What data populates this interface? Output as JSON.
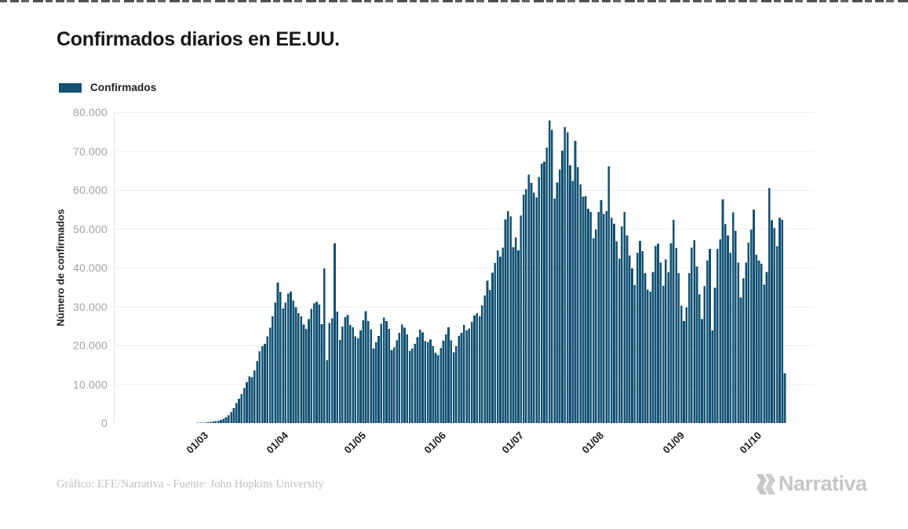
{
  "chart": {
    "title": "Confirmados diarios en EE.UU."
  },
  "footer": {
    "source": "Gráfico: EFE/Narrativa - Fuente: John Hopkins University",
    "logo_text": "Narrativa"
  },
  "chart_data": {
    "type": "bar",
    "title": "Confirmados diarios en EE.UU.",
    "series_name": "Confirmados",
    "ylabel": "Número de confirmados",
    "ylim": [
      0,
      80000
    ],
    "grid": true,
    "legend_position": "top-left",
    "bar_color": "#135273",
    "grid_color": "#ececec",
    "yticks": [
      "80.000",
      "70.000",
      "60.000",
      "50.000",
      "40.000",
      "30.000",
      "20.000",
      "10.000",
      "0"
    ],
    "xticks": [
      {
        "label": "01/03",
        "day_index": 29
      },
      {
        "label": "01/04",
        "day_index": 60
      },
      {
        "label": "01/05",
        "day_index": 90
      },
      {
        "label": "01/06",
        "day_index": 121
      },
      {
        "label": "01/07",
        "day_index": 151
      },
      {
        "label": "01/08",
        "day_index": 182
      },
      {
        "label": "01/09",
        "day_index": 213
      },
      {
        "label": "01/10",
        "day_index": 243
      }
    ],
    "values": [
      0,
      0,
      0,
      0,
      0,
      0,
      0,
      0,
      0,
      0,
      0,
      0,
      0,
      0,
      0,
      0,
      0,
      0,
      2,
      3,
      2,
      4,
      5,
      6,
      8,
      10,
      12,
      15,
      19,
      25,
      30,
      45,
      70,
      90,
      120,
      150,
      220,
      300,
      400,
      500,
      650,
      850,
      1100,
      1500,
      2000,
      2800,
      3800,
      5200,
      6300,
      7500,
      9000,
      10500,
      12000,
      11800,
      13500,
      16000,
      18500,
      19800,
      20400,
      22300,
      24500,
      27500,
      31000,
      36200,
      33700,
      29500,
      31000,
      33300,
      33800,
      31500,
      29800,
      28300,
      27500,
      25400,
      24200,
      26800,
      29400,
      30800,
      31200,
      30500,
      25500,
      39800,
      16200,
      25800,
      27000,
      46300,
      28700,
      21400,
      24800,
      27300,
      27800,
      25300,
      24600,
      22300,
      21800,
      23800,
      26500,
      28800,
      26300,
      24100,
      19200,
      20800,
      22400,
      25600,
      27200,
      26300,
      24200,
      18800,
      19500,
      21300,
      23200,
      25400,
      24500,
      22800,
      18600,
      19200,
      20400,
      22100,
      24000,
      23300,
      21100,
      20800,
      21500,
      19800,
      18100,
      17500,
      19300,
      21200,
      22800,
      24600,
      21300,
      18200,
      19800,
      22400,
      23200,
      25300,
      23800,
      24300,
      26100,
      27700,
      28300,
      27500,
      30300,
      32800,
      36700,
      34200,
      38700,
      41200,
      44400,
      42800,
      45200,
      52400,
      54500,
      53200,
      45300,
      47800,
      44400,
      53400,
      58800,
      60200,
      63900,
      61800,
      59300,
      58100,
      63300,
      66800,
      67300,
      70900,
      77900,
      75500,
      57800,
      61900,
      65300,
      70100,
      76200,
      74800,
      66400,
      62300,
      72600,
      65900,
      61400,
      58300,
      58400,
      55200,
      54300,
      47600,
      49800,
      54300,
      57400,
      53800,
      54500,
      66100,
      52800,
      51300,
      46800,
      42300,
      50600,
      54300,
      48300,
      43100,
      39800,
      35600,
      43800,
      46900,
      44200,
      38600,
      34300,
      33800,
      38900,
      45600,
      46200,
      41300,
      35400,
      42100,
      38800,
      46300,
      52300,
      45100,
      38600,
      30200,
      26300,
      29800,
      38600,
      45200,
      47100,
      40300,
      33100,
      26800,
      35300,
      41800,
      44800,
      23800,
      34800,
      44800,
      47300,
      57600,
      51200,
      48300,
      43800,
      54200,
      49500,
      41300,
      32300,
      37300,
      41300,
      46500,
      49800,
      55000,
      43300,
      41800,
      41000,
      35700,
      38900,
      60500,
      52200,
      50200,
      45600,
      52800,
      52300,
      12800
    ]
  }
}
